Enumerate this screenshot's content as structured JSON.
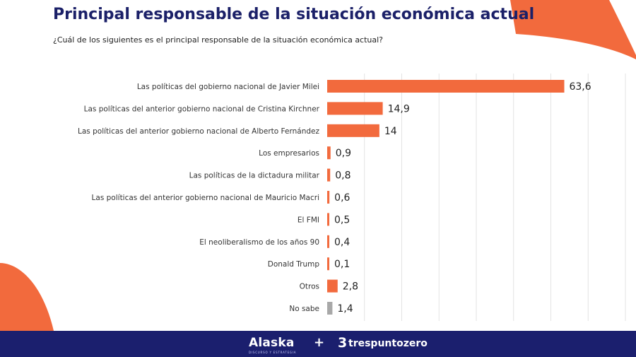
{
  "header": {
    "title": "Principal responsable de la situación económica actual",
    "question": "¿Cuál de los siguientes es el principal responsable de la situación económica actual?"
  },
  "colors": {
    "accent": "#f26a3d",
    "neutral": "#a8a8a8",
    "navy": "#1b1f6e",
    "title": "#1b2068",
    "grid": "#e3e3e3"
  },
  "chart_data": {
    "type": "bar",
    "orientation": "horizontal",
    "categories": [
      "Las políticas del gobierno nacional de Javier Milei",
      "Las políticas del anterior gobierno nacional de Cristina Kirchner",
      "Las políticas del anterior gobierno nacional de Alberto Fernández",
      "Los empresarios",
      "Las políticas de la dictadura militar",
      "Las políticas del anterior gobierno nacional de Mauricio Macri",
      "El FMI",
      "El neoliberalismo de los años 90",
      "Donald Trump",
      "Otros",
      "No sabe"
    ],
    "values": [
      63.6,
      14.9,
      14,
      0.9,
      0.8,
      0.6,
      0.5,
      0.4,
      0.1,
      2.8,
      1.4
    ],
    "value_labels": [
      "63,6",
      "14,9",
      "14",
      "0,9",
      "0,8",
      "0,6",
      "0,5",
      "0,4",
      "0,1",
      "2,8",
      "1,4"
    ],
    "bar_colors": [
      "#f26a3d",
      "#f26a3d",
      "#f26a3d",
      "#f26a3d",
      "#f26a3d",
      "#f26a3d",
      "#f26a3d",
      "#f26a3d",
      "#f26a3d",
      "#f26a3d",
      "#a8a8a8"
    ],
    "xlim": [
      0,
      80
    ],
    "grid": true,
    "title": "",
    "xlabel": "",
    "ylabel": ""
  },
  "footer": {
    "brand_1": "Alaska",
    "brand_1_tagline": "DISCURSO Y ESTRATEGIA",
    "separator": "+",
    "brand_2_logo": "3",
    "brand_2": "trespuntozero"
  }
}
